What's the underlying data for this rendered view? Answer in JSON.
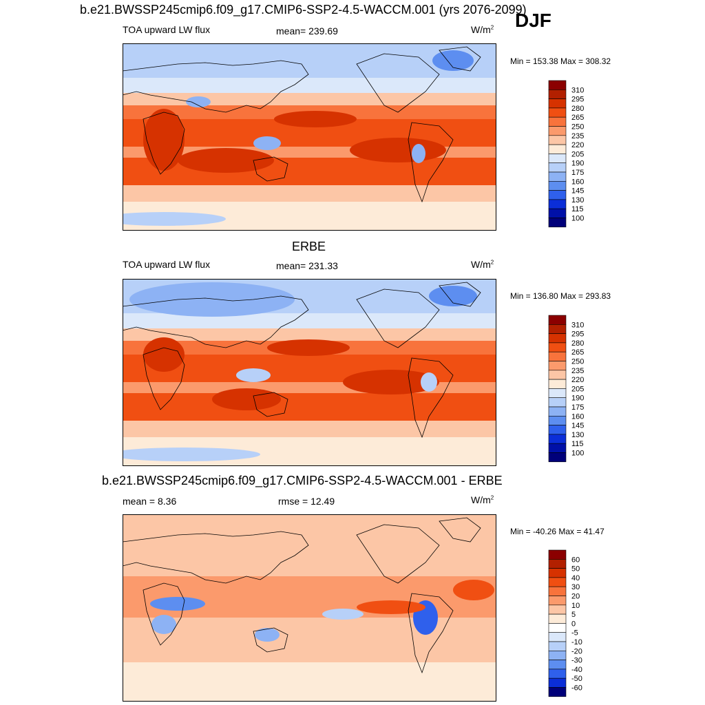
{
  "season": "DJF",
  "chart_data": [
    {
      "type": "heatmap",
      "title": "b.e21.BWSSP245cmip6.f09_g17.CMIP6-SSP2-4.5-WACCM.001 (yrs 2076-2099)",
      "variable": "TOA upward LW flux",
      "mean_label": "mean= 239.69",
      "units": "W/m",
      "units_exp": "2",
      "min_max": "Min = 153.38 Max = 308.32",
      "colorbar_labels": [
        "310",
        "295",
        "280",
        "265",
        "250",
        "235",
        "220",
        "205",
        "190",
        "175",
        "160",
        "145",
        "130",
        "115",
        "100"
      ],
      "colors": [
        "#8b0000",
        "#b22000",
        "#d63200",
        "#f04f12",
        "#f8733c",
        "#fb9a6c",
        "#fcc6a6",
        "#fdebd8",
        "#dbe8fa",
        "#b7d0f8",
        "#8db2f4",
        "#5d8ef0",
        "#2f60ec",
        "#0b2ed8",
        "#0010a8",
        "#00007a"
      ]
    },
    {
      "type": "heatmap",
      "title": "ERBE",
      "variable": "TOA upward LW flux",
      "mean_label": "mean= 231.33",
      "units": "W/m",
      "units_exp": "2",
      "min_max": "Min = 136.80 Max = 293.83",
      "colorbar_labels": [
        "310",
        "295",
        "280",
        "265",
        "250",
        "235",
        "220",
        "205",
        "190",
        "175",
        "160",
        "145",
        "130",
        "115",
        "100"
      ],
      "colors": [
        "#8b0000",
        "#b22000",
        "#d63200",
        "#f04f12",
        "#f8733c",
        "#fb9a6c",
        "#fcc6a6",
        "#fdebd8",
        "#dbe8fa",
        "#b7d0f8",
        "#8db2f4",
        "#5d8ef0",
        "#2f60ec",
        "#0b2ed8",
        "#0010a8",
        "#00007a"
      ]
    },
    {
      "type": "heatmap",
      "title": "b.e21.BWSSP245cmip6.f09_g17.CMIP6-SSP2-4.5-WACCM.001 - ERBE",
      "variable": "",
      "mean_label": "mean =   8.36",
      "rmse_label": "rmse =  12.49",
      "units": "W/m",
      "units_exp": "2",
      "min_max": "Min = -40.26 Max =  41.47",
      "colorbar_labels": [
        "60",
        "50",
        "40",
        "30",
        "20",
        "10",
        "5",
        "0",
        "-5",
        "-10",
        "-20",
        "-30",
        "-40",
        "-50",
        "-60"
      ],
      "colors": [
        "#8b0000",
        "#b22000",
        "#d63200",
        "#f04f12",
        "#f8733c",
        "#fb9a6c",
        "#fcc6a6",
        "#fdebd8",
        "#ffffff",
        "#dbe8fa",
        "#b7d0f8",
        "#8db2f4",
        "#5d8ef0",
        "#2f60ec",
        "#0b2ed8",
        "#00007a"
      ]
    }
  ]
}
